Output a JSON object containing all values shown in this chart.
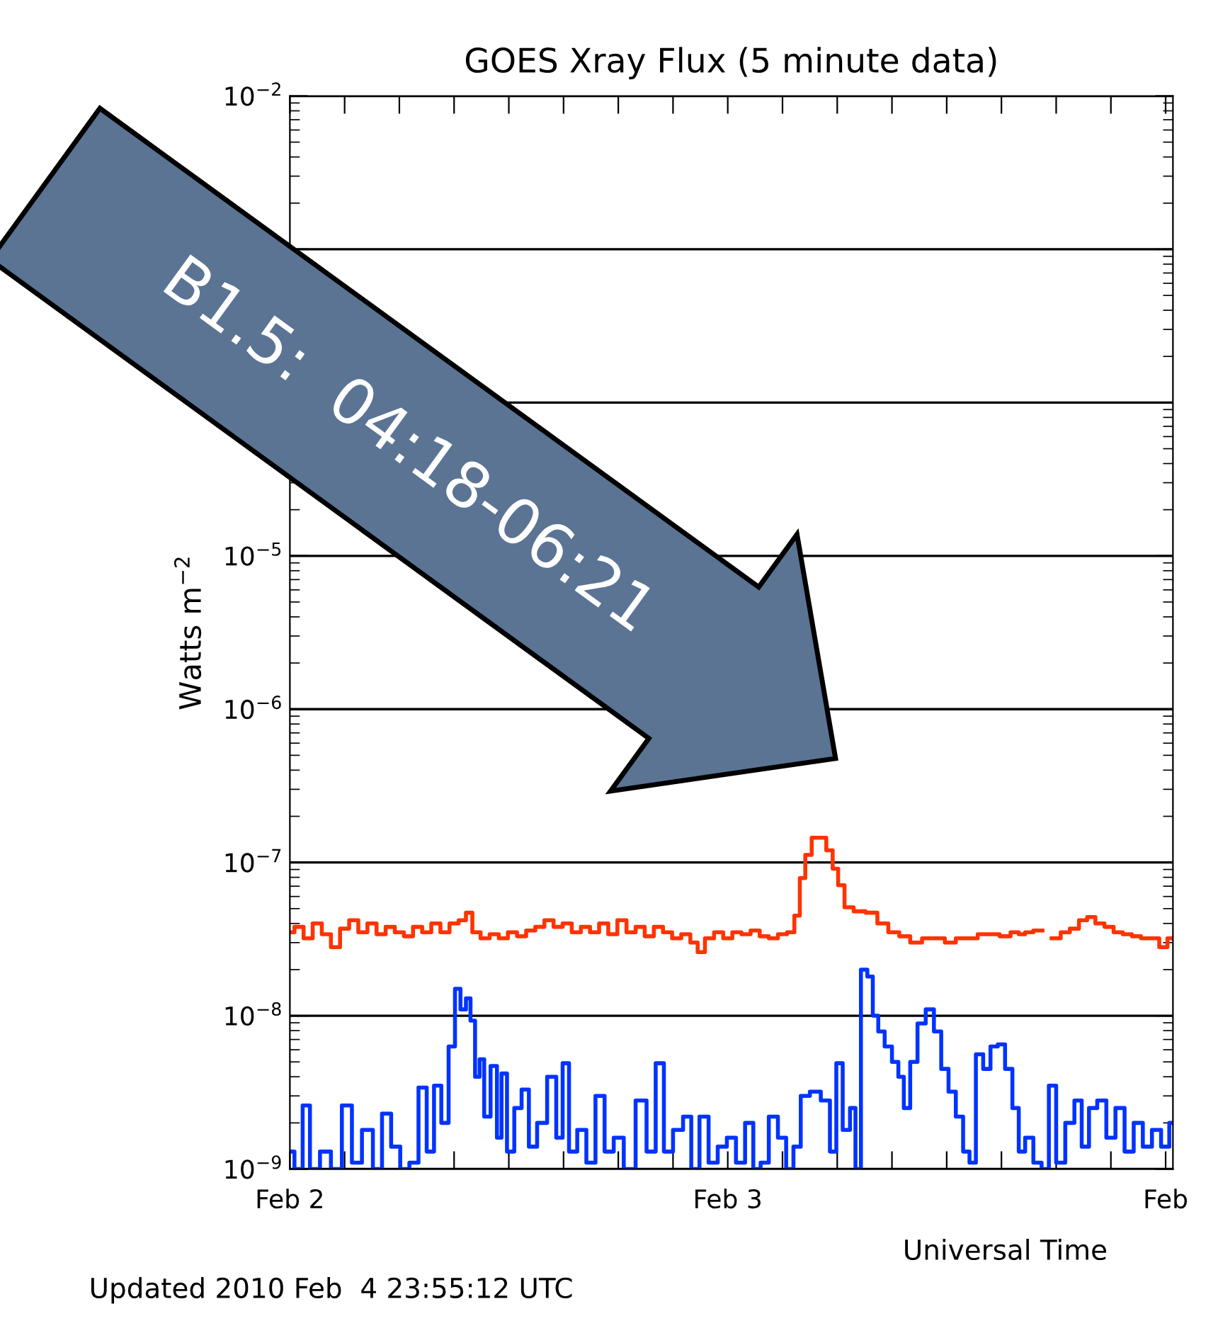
{
  "chart_data": {
    "type": "step",
    "title": "GOES Xray Flux (5 minute data)",
    "xlabel": "Universal Time",
    "ylabel": "Watts m$^{−2}$",
    "annotations": [
      "B1.5:  04:18-06:21",
      "Updated 2010 Feb  4 23:55:12 UTC"
    ],
    "log": "y",
    "grid": "y",
    "marker": "none",
    "line_style": "solid",
    "xlim": [
      "2010-02-02T00:00",
      "2010-02-04T00:24"
    ],
    "xticks": [
      {
        "value": "2010-02-02",
        "label": "Feb 2"
      },
      {
        "value": "2010-02-02T03:00",
        "label": null
      },
      {
        "value": "2010-02-02T06:00",
        "label": null
      },
      {
        "value": "2010-02-02T09:00",
        "label": null
      },
      {
        "value": "2010-02-02T12:00",
        "label": null
      },
      {
        "value": "2010-02-02T15:00",
        "label": null
      },
      {
        "value": "2010-02-02T18:00",
        "label": null
      },
      {
        "value": "2010-02-02T21:00",
        "label": null
      },
      {
        "value": "2010-02-03",
        "label": "Feb 3"
      },
      {
        "value": "2010-02-03T03:00",
        "label": null
      },
      {
        "value": "2010-02-03T06:00",
        "label": null
      },
      {
        "value": "2010-02-03T09:00",
        "label": null
      },
      {
        "value": "2010-02-03T12:00",
        "label": null
      },
      {
        "value": "2010-02-03T15:00",
        "label": null
      },
      {
        "value": "2010-02-03T18:00",
        "label": null
      },
      {
        "value": "2010-02-03T21:00",
        "label": null
      },
      {
        "value": "2010-02-04",
        "label": "Feb"
      }
    ],
    "ylim": [
      1e-09,
      0.01
    ],
    "yticks": [
      {
        "value": 1e-09,
        "label": "10$^{−9}$"
      },
      {
        "value": 1e-08,
        "label": "10$^{−8}$"
      },
      {
        "value": 1e-07,
        "label": "10$^{−7}$"
      },
      {
        "value": 1e-06,
        "label": "10$^{−6}$"
      },
      {
        "value": 1e-05,
        "label": "10$^{−5}$"
      },
      {
        "value": 0.0001,
        "label": null
      },
      {
        "value": 0.001,
        "label": null
      },
      {
        "value": 0.01,
        "label": "10$^{−2}$"
      }
    ],
    "series": [
      {
        "color": "#ff3300",
        "x": [
          "2010-02-02T00:00",
          "2010-02-02T00:30",
          "2010-02-02T01:00",
          "2010-02-02T01:30",
          "2010-02-02T02:00",
          "2010-02-02T02:30",
          "2010-02-02T03:00",
          "2010-02-02T03:30",
          "2010-02-02T04:00",
          "2010-02-02T04:30",
          "2010-02-02T05:00",
          "2010-02-02T05:30",
          "2010-02-02T06:00",
          "2010-02-02T06:30",
          "2010-02-02T07:00",
          "2010-02-02T07:30",
          "2010-02-02T08:00",
          "2010-02-02T08:30",
          "2010-02-02T09:00",
          "2010-02-02T09:30",
          "2010-02-02T09:48",
          "2010-02-02T10:12",
          "2010-02-02T10:42",
          "2010-02-02T11:12",
          "2010-02-02T11:42",
          "2010-02-02T12:12",
          "2010-02-02T12:42",
          "2010-02-02T13:12",
          "2010-02-02T13:42",
          "2010-02-02T14:12",
          "2010-02-02T14:42",
          "2010-02-02T15:12",
          "2010-02-02T15:42",
          "2010-02-02T16:12",
          "2010-02-02T16:42",
          "2010-02-02T17:12",
          "2010-02-02T17:42",
          "2010-02-02T18:12",
          "2010-02-02T18:42",
          "2010-02-02T19:12",
          "2010-02-02T19:42",
          "2010-02-02T20:12",
          "2010-02-02T20:42",
          "2010-02-02T21:12",
          "2010-02-02T21:42",
          "2010-02-02T22:12",
          "2010-02-02T22:30",
          "2010-02-02T23:00",
          "2010-02-02T23:30",
          "2010-02-03T00:00",
          "2010-02-03T00:30",
          "2010-02-03T01:00",
          "2010-02-03T01:30",
          "2010-02-03T02:00",
          "2010-02-03T02:30",
          "2010-02-03T03:00",
          "2010-02-03T03:30",
          "2010-02-03T03:48",
          "2010-02-03T04:06",
          "2010-02-03T04:24",
          "2010-02-03T04:48",
          "2010-02-03T05:12",
          "2010-02-03T05:36",
          "2010-02-03T05:54",
          "2010-02-03T06:12",
          "2010-02-03T06:36",
          "2010-02-03T07:12",
          "2010-02-03T07:54",
          "2010-02-03T08:30",
          "2010-02-03T09:06",
          "2010-02-03T09:42",
          "2010-02-03T10:18",
          "2010-02-03T11:00",
          "2010-02-03T11:36",
          "2010-02-03T12:12",
          "2010-02-03T12:48",
          "2010-02-03T13:24",
          "2010-02-03T14:00",
          "2010-02-03T14:36",
          "2010-02-03T15:12",
          "2010-02-03T15:48",
          "2010-02-03T16:06",
          "2010-02-03T16:30",
          "2010-02-03T17:00",
          "2010-02-03T17:30",
          "2010-02-03T18:00",
          "2010-02-03T18:30",
          "2010-02-03T19:00",
          "2010-02-03T19:30",
          "2010-02-03T19:54",
          "2010-02-03T20:24",
          "2010-02-03T20:54",
          "2010-02-03T21:24",
          "2010-02-03T21:54",
          "2010-02-03T22:24",
          "2010-02-03T22:54",
          "2010-02-03T23:24",
          "2010-02-03T23:54",
          "2010-02-04T00:18"
        ],
        "values": [
          3.5e-08,
          3.8e-08,
          3.2e-08,
          4e-08,
          3.4e-08,
          2.8e-08,
          3.7e-08,
          4.2e-08,
          3.5e-08,
          4e-08,
          3.4e-08,
          3.8e-08,
          3.5e-08,
          3.3e-08,
          3.8e-08,
          3.5e-08,
          4e-08,
          3.5e-08,
          4e-08,
          4.2e-08,
          4.7e-08,
          3.5e-08,
          3.2e-08,
          3.4e-08,
          3.2e-08,
          3.5e-08,
          3.3e-08,
          3.6e-08,
          3.8e-08,
          4.2e-08,
          3.8e-08,
          4e-08,
          3.5e-08,
          3.8e-08,
          3.5e-08,
          4e-08,
          3.4e-08,
          4.2e-08,
          3.5e-08,
          3.8e-08,
          3.3e-08,
          3.8e-08,
          3.5e-08,
          3.2e-08,
          3.4e-08,
          3e-08,
          2.6e-08,
          3.2e-08,
          3.5e-08,
          3.2e-08,
          3.5e-08,
          3.4e-08,
          3.6e-08,
          3.3e-08,
          3.2e-08,
          3.4e-08,
          3.5e-08,
          4.5e-08,
          7.9e-08,
          1.12e-07,
          1.45e-07,
          1.45e-07,
          1.2e-07,
          9.1e-08,
          7.1e-08,
          5.1e-08,
          4.8e-08,
          4.7e-08,
          4e-08,
          3.5e-08,
          3.3e-08,
          3e-08,
          3.2e-08,
          3.2e-08,
          3e-08,
          3.2e-08,
          3.2e-08,
          3.4e-08,
          3.4e-08,
          3.3e-08,
          3.5e-08,
          3.4e-08,
          3.5e-08,
          3.6e-08,
          null,
          3.2e-08,
          3.5e-08,
          3.7e-08,
          4.2e-08,
          4.4e-08,
          4e-08,
          3.8e-08,
          3.5e-08,
          3.4e-08,
          3.3e-08,
          3.2e-08,
          3.2e-08,
          2.8e-08,
          3.2e-08
        ]
      },
      {
        "color": "#0033ff",
        "x": [
          "2010-02-02T00:00",
          "2010-02-02T00:30",
          "2010-02-02T00:54",
          "2010-02-02T01:18",
          "2010-02-02T02:00",
          "2010-02-02T02:30",
          "2010-02-02T03:12",
          "2010-02-02T03:36",
          "2010-02-02T04:18",
          "2010-02-02T04:48",
          "2010-02-02T05:18",
          "2010-02-02T05:48",
          "2010-02-02T06:18",
          "2010-02-02T06:48",
          "2010-02-02T07:18",
          "2010-02-02T07:42",
          "2010-02-02T08:06",
          "2010-02-02T08:30",
          "2010-02-02T08:54",
          "2010-02-02T09:12",
          "2010-02-02T09:30",
          "2010-02-02T09:48",
          "2010-02-02T10:00",
          "2010-02-02T10:18",
          "2010-02-02T10:30",
          "2010-02-02T10:48",
          "2010-02-02T11:12",
          "2010-02-02T11:30",
          "2010-02-02T11:42",
          "2010-02-02T12:06",
          "2010-02-02T12:30",
          "2010-02-02T12:54",
          "2010-02-02T13:18",
          "2010-02-02T13:48",
          "2010-02-02T14:24",
          "2010-02-02T14:48",
          "2010-02-02T15:06",
          "2010-02-02T15:30",
          "2010-02-02T16:00",
          "2010-02-02T16:30",
          "2010-02-02T17:00",
          "2010-02-02T17:30",
          "2010-02-02T18:00",
          "2010-02-02T18:36",
          "2010-02-02T19:18",
          "2010-02-02T19:48",
          "2010-02-02T20:18",
          "2010-02-02T20:42",
          "2010-02-02T21:18",
          "2010-02-02T21:48",
          "2010-02-02T22:12",
          "2010-02-02T22:42",
          "2010-02-02T23:12",
          "2010-02-02T23:42",
          "2010-02-03T00:12",
          "2010-02-03T00:42",
          "2010-02-03T01:12",
          "2010-02-03T01:36",
          "2010-02-03T02:00",
          "2010-02-03T02:30",
          "2010-02-03T03:00",
          "2010-02-03T03:24",
          "2010-02-03T03:48",
          "2010-02-03T04:12",
          "2010-02-03T04:48",
          "2010-02-03T05:24",
          "2010-02-03T05:48",
          "2010-02-03T06:06",
          "2010-02-03T06:30",
          "2010-02-03T06:54",
          "2010-02-03T07:06",
          "2010-02-03T07:30",
          "2010-02-03T07:48",
          "2010-02-03T08:06",
          "2010-02-03T08:24",
          "2010-02-03T08:48",
          "2010-02-03T09:12",
          "2010-02-03T09:30",
          "2010-02-03T09:48",
          "2010-02-03T10:12",
          "2010-02-03T10:36",
          "2010-02-03T11:06",
          "2010-02-03T11:30",
          "2010-02-03T11:54",
          "2010-02-03T12:18",
          "2010-02-03T12:42",
          "2010-02-03T13:06",
          "2010-02-03T13:24",
          "2010-02-03T13:48",
          "2010-02-03T14:12",
          "2010-02-03T14:36",
          "2010-02-03T15:00",
          "2010-02-03T15:24",
          "2010-02-03T15:48",
          "2010-02-03T16:06",
          "2010-02-03T16:30",
          "2010-02-03T17:00",
          "2010-02-03T17:24",
          "2010-02-03T17:48",
          "2010-02-03T18:12",
          "2010-02-03T18:48",
          "2010-02-03T19:12",
          "2010-02-03T19:36",
          "2010-02-03T20:00",
          "2010-02-03T20:30",
          "2010-02-03T21:00",
          "2010-02-03T21:30",
          "2010-02-03T22:00",
          "2010-02-03T22:30",
          "2010-02-03T23:00",
          "2010-02-03T23:30",
          "2010-02-04T00:00",
          "2010-02-04T00:24"
        ],
        "values": [
          1.3e-09,
          1e-09,
          2.6e-09,
          1e-09,
          1.3e-09,
          1e-09,
          2.6e-09,
          1.1e-09,
          1.8e-09,
          1e-09,
          2.3e-09,
          1.4e-09,
          1e-09,
          1.1e-09,
          3.4e-09,
          1.3e-09,
          3.5e-09,
          2e-09,
          6.3e-09,
          1.5e-08,
          1.1e-08,
          1.3e-08,
          9.3e-09,
          4e-09,
          5.2e-09,
          2.2e-09,
          4.7e-09,
          1.6e-09,
          4.2e-09,
          1.3e-09,
          2.5e-09,
          3.3e-09,
          1.4e-09,
          2e-09,
          4e-09,
          1.6e-09,
          4.9e-09,
          1.3e-09,
          1.8e-09,
          1.1e-09,
          3e-09,
          1.3e-09,
          1.6e-09,
          1e-09,
          2.8e-09,
          1.3e-09,
          4.9e-09,
          1.3e-09,
          1.8e-09,
          2.2e-09,
          1e-09,
          2.2e-09,
          1.1e-09,
          1.4e-09,
          1.6e-09,
          1.1e-09,
          2e-09,
          1e-09,
          1.1e-09,
          2.2e-09,
          1.6e-09,
          1e-09,
          1.4e-09,
          3e-09,
          3.2e-09,
          2.8e-09,
          1.3e-09,
          4.9e-09,
          1.8e-09,
          2.5e-09,
          1e-09,
          2e-08,
          1.8e-08,
          1e-08,
          7.9e-09,
          6.3e-09,
          5e-09,
          4e-09,
          2.5e-09,
          5e-09,
          8.9e-09,
          1.1e-08,
          7.9e-09,
          4.5e-09,
          3.2e-09,
          2.2e-09,
          1.3e-09,
          1.1e-09,
          5.6e-09,
          4.5e-09,
          6.3e-09,
          6.5e-09,
          4.5e-09,
          2.5e-09,
          1.3e-09,
          1.6e-09,
          1.1e-09,
          1e-09,
          3.5e-09,
          1.1e-09,
          2e-09,
          2.8e-09,
          1.4e-09,
          2.5e-09,
          2.8e-09,
          1.6e-09,
          2.5e-09,
          1.3e-09,
          2e-09,
          1.4e-09,
          1.8e-09,
          1.4e-09,
          2e-09
        ]
      }
    ]
  }
}
